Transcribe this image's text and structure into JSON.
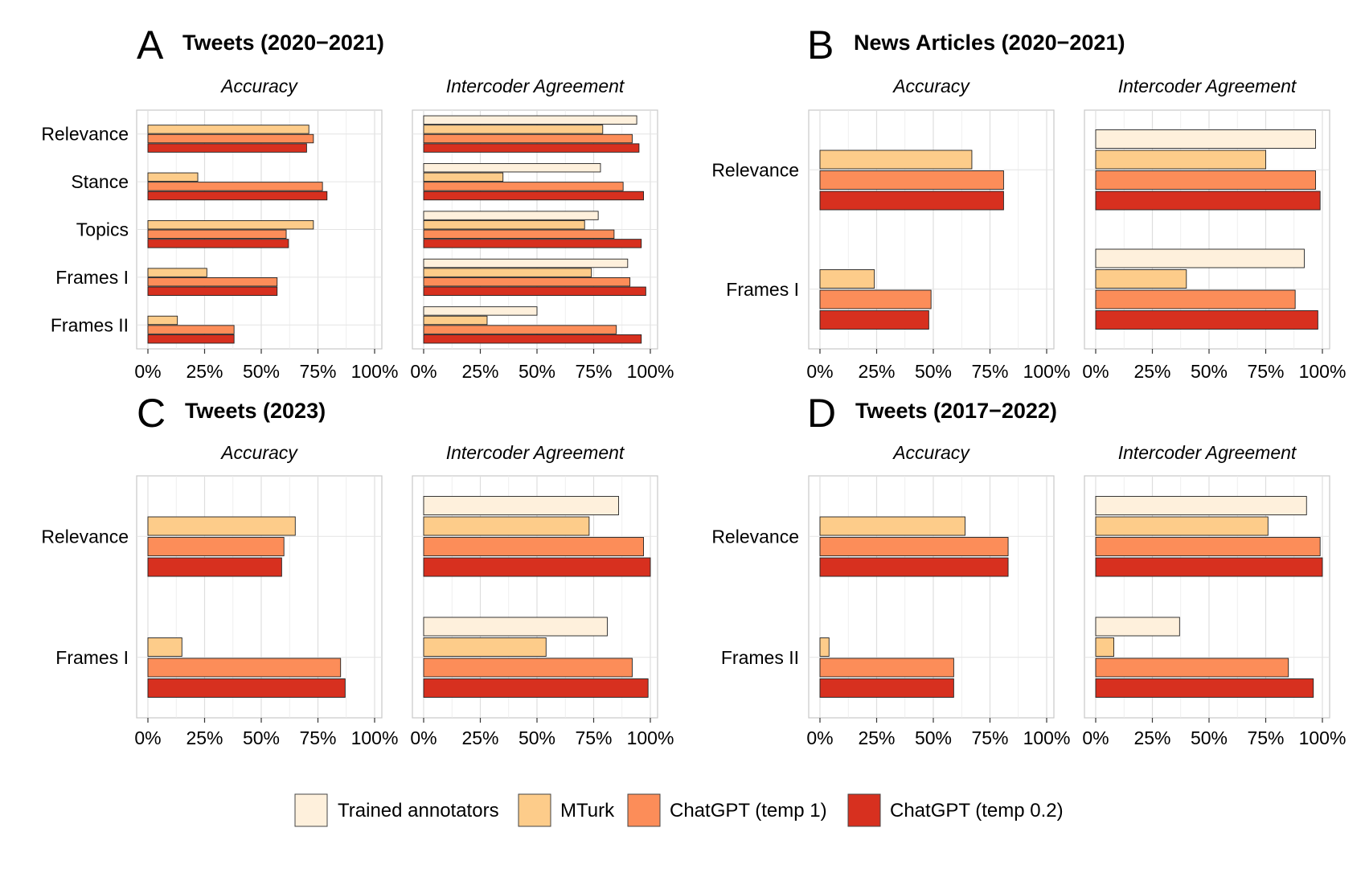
{
  "axis": {
    "ticks": [
      0,
      25,
      50,
      75,
      100
    ],
    "tick_labels": [
      "0%",
      "25%",
      "50%",
      "75%",
      "100%"
    ],
    "xlim": [
      0,
      100
    ]
  },
  "series": [
    {
      "name": "Trained annotators",
      "color": "#FEF0DC"
    },
    {
      "name": "MTurk",
      "color": "#FDCC8A"
    },
    {
      "name": "ChatGPT (temp 1)",
      "color": "#FC8D59"
    },
    {
      "name": "ChatGPT (temp 0.2)",
      "color": "#D7301F"
    }
  ],
  "chart_data": [
    {
      "type": "bar",
      "letter": "A",
      "title": "Tweets (2020−2021)",
      "categories": [
        "Relevance",
        "Stance",
        "Topics",
        "Frames I",
        "Frames II"
      ],
      "facets": [
        {
          "name": "Accuracy",
          "values": [
            [
              null,
              71,
              73,
              70
            ],
            [
              null,
              22,
              77,
              79
            ],
            [
              null,
              73,
              61,
              62
            ],
            [
              null,
              26,
              57,
              57
            ],
            [
              null,
              13,
              38,
              38
            ]
          ]
        },
        {
          "name": "Intercoder Agreement",
          "values": [
            [
              94,
              79,
              92,
              95
            ],
            [
              78,
              35,
              88,
              97
            ],
            [
              77,
              71,
              84,
              96
            ],
            [
              90,
              74,
              91,
              98
            ],
            [
              50,
              28,
              85,
              96
            ]
          ]
        }
      ]
    },
    {
      "type": "bar",
      "letter": "B",
      "title": "News Articles (2020−2021)",
      "categories": [
        "Relevance",
        "Frames I"
      ],
      "facets": [
        {
          "name": "Accuracy",
          "values": [
            [
              null,
              67,
              81,
              81
            ],
            [
              null,
              24,
              49,
              48
            ]
          ]
        },
        {
          "name": "Intercoder Agreement",
          "values": [
            [
              97,
              75,
              97,
              99
            ],
            [
              92,
              40,
              88,
              98
            ]
          ]
        }
      ]
    },
    {
      "type": "bar",
      "letter": "C",
      "title": "Tweets (2023)",
      "categories": [
        "Relevance",
        "Frames I"
      ],
      "facets": [
        {
          "name": "Accuracy",
          "values": [
            [
              null,
              65,
              60,
              59
            ],
            [
              null,
              15,
              85,
              87
            ]
          ]
        },
        {
          "name": "Intercoder Agreement",
          "values": [
            [
              86,
              73,
              97,
              100
            ],
            [
              81,
              54,
              92,
              99
            ]
          ]
        }
      ]
    },
    {
      "type": "bar",
      "letter": "D",
      "title": "Tweets (2017−2022)",
      "categories": [
        "Relevance",
        "Frames II"
      ],
      "facets": [
        {
          "name": "Accuracy",
          "values": [
            [
              null,
              64,
              83,
              83
            ],
            [
              null,
              4,
              59,
              59
            ]
          ]
        },
        {
          "name": "Intercoder Agreement",
          "values": [
            [
              93,
              76,
              99,
              100
            ],
            [
              37,
              8,
              85,
              96
            ]
          ]
        }
      ]
    }
  ]
}
